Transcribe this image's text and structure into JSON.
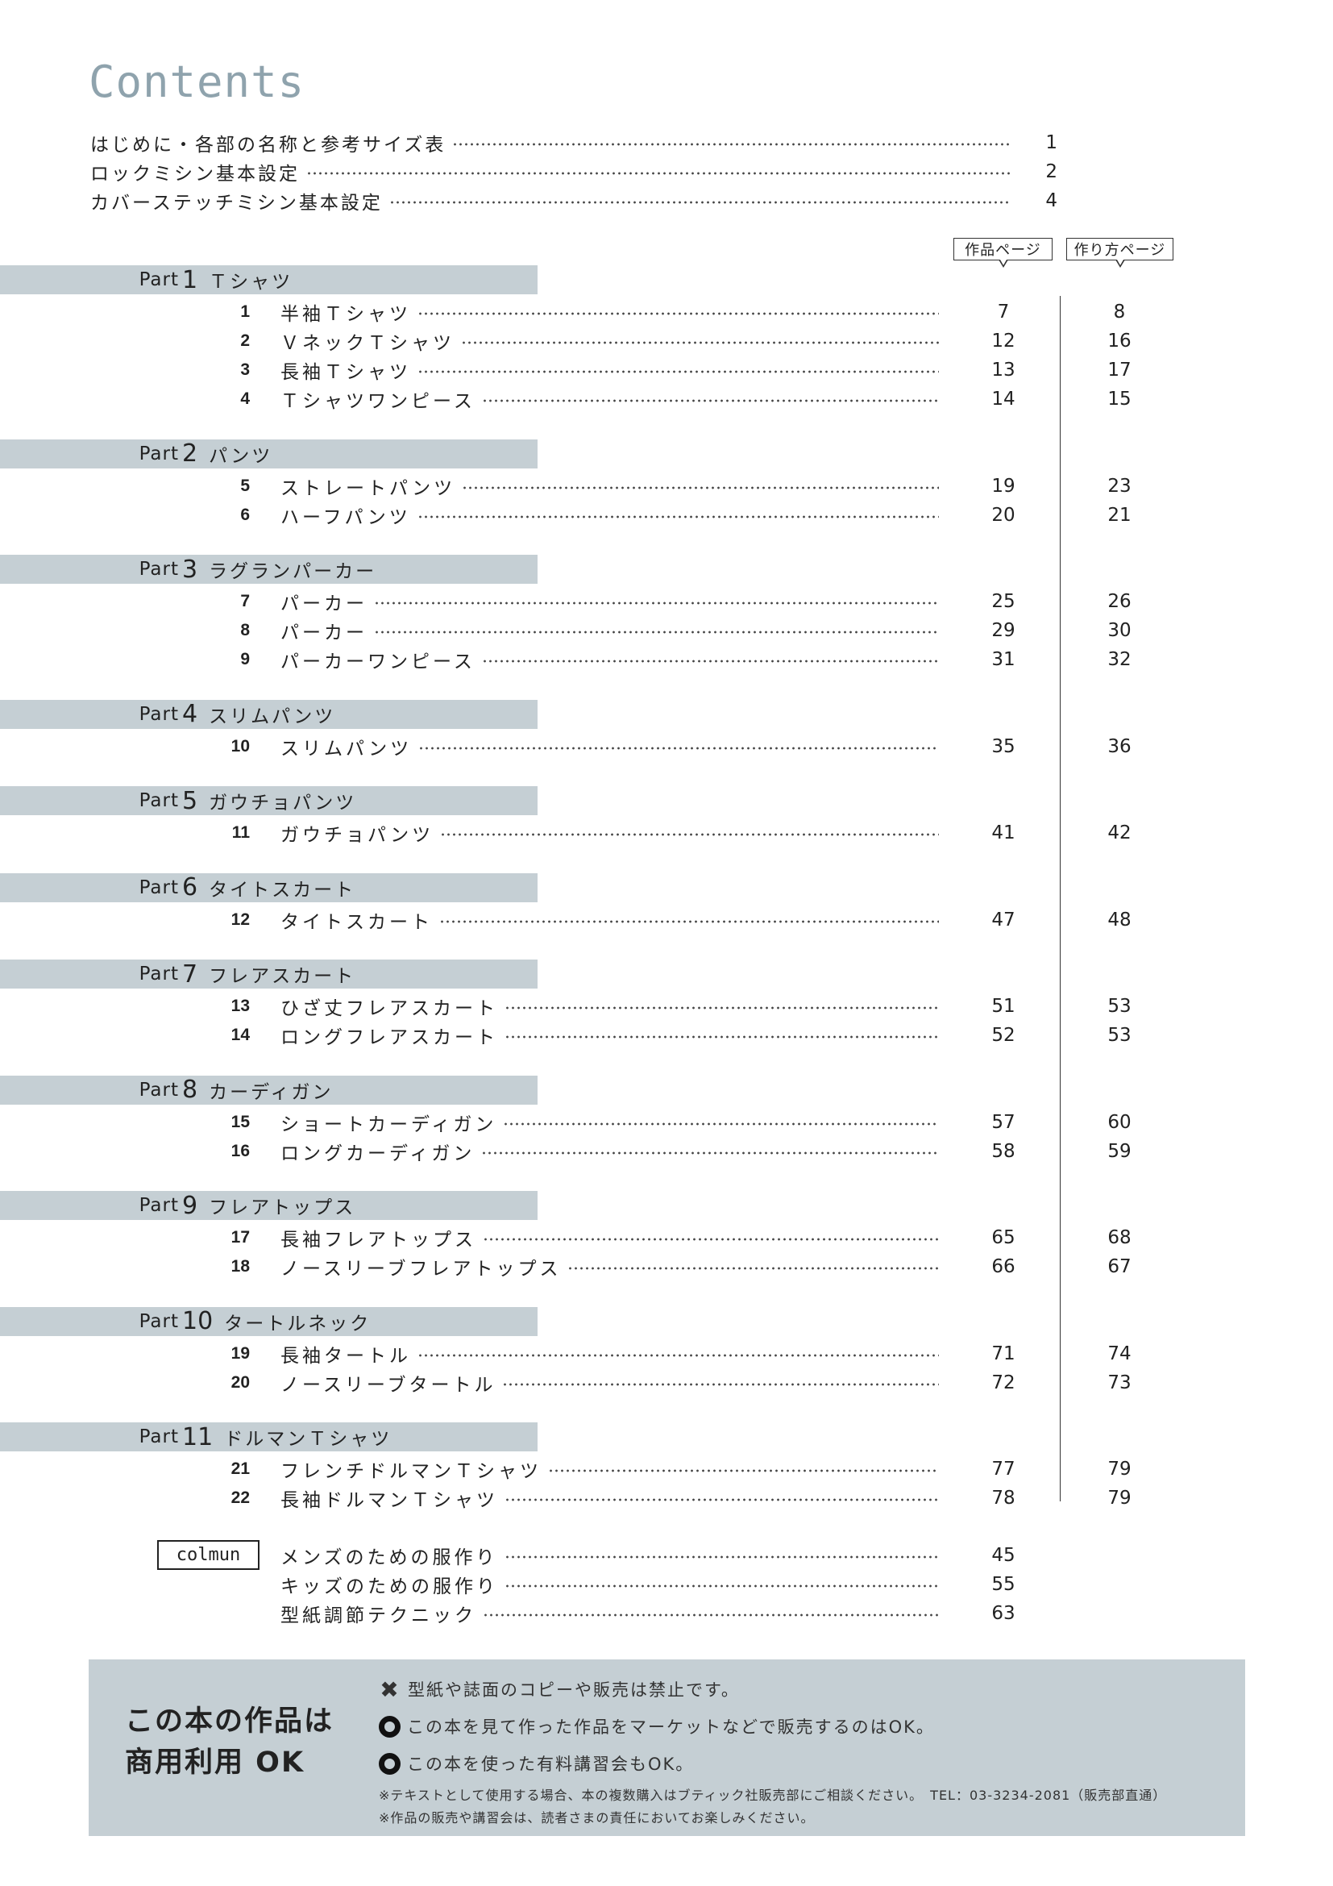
{
  "title": "Contents",
  "intro": [
    {
      "label": "はじめに・各部の名称と参考サイズ表",
      "page": "1"
    },
    {
      "label": "ロックミシン基本設定",
      "page": "2"
    },
    {
      "label": "カバーステッチミシン基本設定",
      "page": "4"
    }
  ],
  "headers": {
    "work_page": "作品ページ",
    "howto_page": "作り方ページ"
  },
  "parts": [
    {
      "label": "Part",
      "num": "1",
      "title": "Ｔシャツ",
      "items": [
        {
          "no": "1",
          "title": "半袖Ｔシャツ",
          "work": "7",
          "howto": "8"
        },
        {
          "no": "2",
          "title": "ＶネックＴシャツ",
          "work": "12",
          "howto": "16"
        },
        {
          "no": "3",
          "title": "長袖Ｔシャツ",
          "work": "13",
          "howto": "17"
        },
        {
          "no": "4",
          "title": "Ｔシャツワンピース",
          "work": "14",
          "howto": "15"
        }
      ]
    },
    {
      "label": "Part",
      "num": "2",
      "title": "パンツ",
      "items": [
        {
          "no": "5",
          "title": "ストレートパンツ",
          "work": "19",
          "howto": "23"
        },
        {
          "no": "6",
          "title": "ハーフパンツ",
          "work": "20",
          "howto": "21"
        }
      ]
    },
    {
      "label": "Part",
      "num": "3",
      "title": "ラグランパーカー",
      "items": [
        {
          "no": "7",
          "title": "パーカー",
          "work": "25",
          "howto": "26"
        },
        {
          "no": "8",
          "title": "パーカー",
          "work": "29",
          "howto": "30"
        },
        {
          "no": "9",
          "title": "パーカーワンピース",
          "work": "31",
          "howto": "32"
        }
      ]
    },
    {
      "label": "Part",
      "num": "4",
      "title": "スリムパンツ",
      "items": [
        {
          "no": "10",
          "title": "スリムパンツ",
          "work": "35",
          "howto": "36"
        }
      ]
    },
    {
      "label": "Part",
      "num": "5",
      "title": "ガウチョパンツ",
      "items": [
        {
          "no": "11",
          "title": "ガウチョパンツ",
          "work": "41",
          "howto": "42"
        }
      ]
    },
    {
      "label": "Part",
      "num": "6",
      "title": "タイトスカート",
      "items": [
        {
          "no": "12",
          "title": "タイトスカート",
          "work": "47",
          "howto": "48"
        }
      ]
    },
    {
      "label": "Part",
      "num": "7",
      "title": "フレアスカート",
      "items": [
        {
          "no": "13",
          "title": "ひざ丈フレアスカート",
          "work": "51",
          "howto": "53"
        },
        {
          "no": "14",
          "title": "ロングフレアスカート",
          "work": "52",
          "howto": "53"
        }
      ]
    },
    {
      "label": "Part",
      "num": "8",
      "title": "カーディガン",
      "items": [
        {
          "no": "15",
          "title": "ショートカーディガン",
          "work": "57",
          "howto": "60"
        },
        {
          "no": "16",
          "title": "ロングカーディガン",
          "work": "58",
          "howto": "59"
        }
      ]
    },
    {
      "label": "Part",
      "num": "9",
      "title": "フレアトップス",
      "items": [
        {
          "no": "17",
          "title": "長袖フレアトップス",
          "work": "65",
          "howto": "68"
        },
        {
          "no": "18",
          "title": "ノースリーブフレアトップス",
          "work": "66",
          "howto": "67"
        }
      ]
    },
    {
      "label": "Part",
      "num": "10",
      "title": "タートルネック",
      "items": [
        {
          "no": "19",
          "title": "長袖タートル",
          "work": "71",
          "howto": "74"
        },
        {
          "no": "20",
          "title": "ノースリーブタートル",
          "work": "72",
          "howto": "73"
        }
      ]
    },
    {
      "label": "Part",
      "num": "11",
      "title": "ドルマンＴシャツ",
      "items": [
        {
          "no": "21",
          "title": "フレンチドルマンＴシャツ",
          "work": "77",
          "howto": "79"
        },
        {
          "no": "22",
          "title": "長袖ドルマンＴシャツ",
          "work": "78",
          "howto": "79"
        }
      ]
    }
  ],
  "column": {
    "label": "colmun",
    "items": [
      {
        "title": "メンズのための服作り",
        "page": "45"
      },
      {
        "title": "キッズのための服作り",
        "page": "55"
      },
      {
        "title": "型紙調節テクニック",
        "page": "63"
      }
    ]
  },
  "footer": {
    "title_line1": "この本の作品は",
    "title_line2": "商用利用 OK",
    "rules": [
      {
        "icon": "cross-icon",
        "text": "型紙や誌面のコピーや販売は禁止です。"
      },
      {
        "icon": "circle-icon",
        "text": "この本を見て作った作品をマーケットなどで販売するのはOK。"
      },
      {
        "icon": "circle-icon",
        "text": "この本を使った有料講習会もOK。"
      }
    ],
    "notes": [
      "※テキストとして使用する場合、本の複数購入はブティック社販売部にご相談ください。　TEL：03-3234-2081（販売部直通）",
      "※作品の販売や講習会は、読者さまの責任においてお楽しみください。"
    ]
  },
  "colors": {
    "title": "#8fa3ad",
    "bar": "#c5cfd4",
    "footer_bg": "#c5cfd4"
  }
}
